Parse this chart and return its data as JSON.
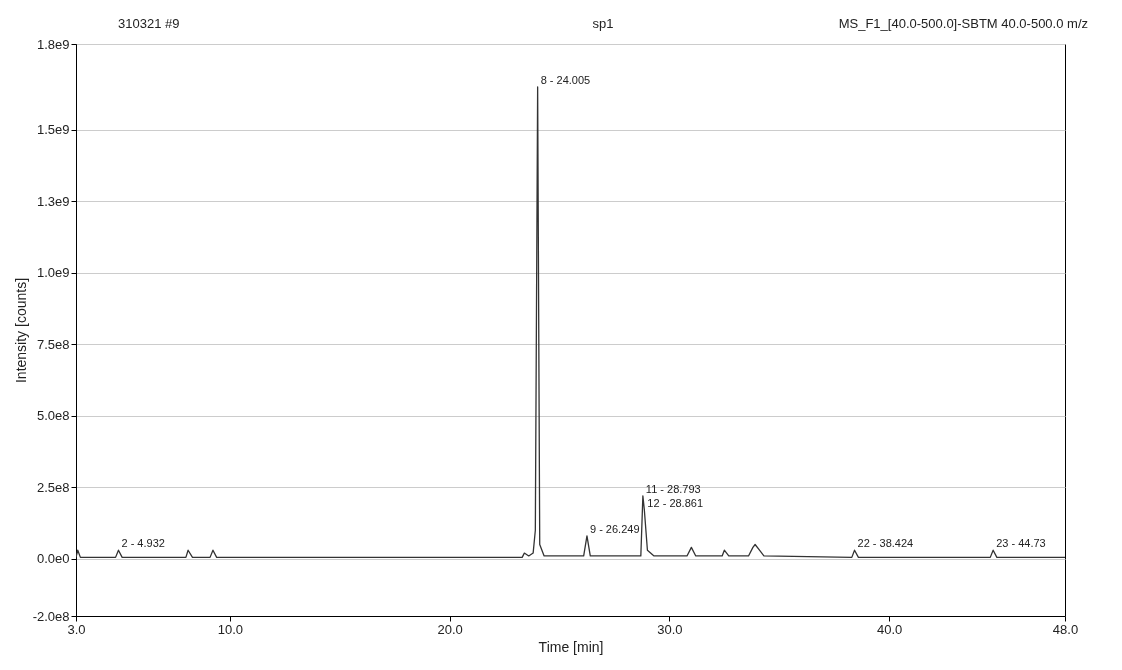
{
  "chart_data": {
    "type": "line",
    "title": "sp1",
    "subtitle": "MS_F1_[40.0-500.0]-SBTM 40.0-500.0 m/z",
    "xlabel": "Time [min]",
    "ylabel": "Intensity [counts]",
    "x": [
      3.0,
      3.08,
      3.2,
      4.8,
      4.932,
      5.1,
      8.0,
      8.1,
      8.3,
      9.1,
      9.231,
      9.4,
      23.3,
      23.4,
      23.6,
      23.8,
      23.9,
      24.005,
      24.1,
      24.3,
      26.1,
      26.249,
      26.4,
      28.7,
      28.793,
      28.861,
      29.0,
      29.3,
      30.8,
      31.0,
      31.2,
      32.4,
      32.5,
      32.7,
      33.6,
      33.8,
      33.9,
      34.1,
      34.3,
      38.3,
      38.424,
      38.6,
      44.6,
      44.73,
      44.9,
      48.0
    ],
    "series": [
      {
        "color": "#333333",
        "values": [
          5000000,
          30000000,
          5000000,
          5000000,
          30000000,
          5000000,
          5000000,
          30000000,
          5000000,
          5000000,
          30000000,
          5000000,
          5000000,
          20000000,
          10000000,
          20000000,
          100000000,
          1650000000,
          50000000,
          10000000,
          10000000,
          80000000,
          10000000,
          10000000,
          220000000,
          170000000,
          30000000,
          10000000,
          10000000,
          40000000,
          10000000,
          10000000,
          30000000,
          10000000,
          10000000,
          40000000,
          50000000,
          30000000,
          10000000,
          5000000,
          30000000,
          5000000,
          5000000,
          30000000,
          5000000,
          5000000
        ]
      }
    ],
    "xlim": [
      3.0,
      48.0
    ],
    "xticks": [
      {
        "value": 3,
        "label": "3.0"
      },
      {
        "value": 10,
        "label": "10.0"
      },
      {
        "value": 20,
        "label": "20.0"
      },
      {
        "value": 30,
        "label": "30.0"
      },
      {
        "value": 40,
        "label": "40.0"
      },
      {
        "value": 48,
        "label": "48.0"
      }
    ],
    "ylim": [
      -200000000,
      1800000000
    ],
    "yticks": [
      {
        "value": -200000000,
        "label": "-2.0e8"
      },
      {
        "value": 0,
        "label": "0.0e0"
      },
      {
        "value": 250000000,
        "label": "2.5e8"
      },
      {
        "value": 500000000,
        "label": "5.0e8"
      },
      {
        "value": 750000000,
        "label": "7.5e8"
      },
      {
        "value": 1000000000,
        "label": "1.0e9"
      },
      {
        "value": 1250000000,
        "label": "1.3e9"
      },
      {
        "value": 1500000000,
        "label": "1.5e9"
      },
      {
        "value": 1800000000,
        "label": "1.8e9"
      }
    ],
    "grid": "y",
    "line_style": "solid",
    "annotations": [
      "310321 #9",
      {
        "text": "2 - 4.932",
        "x": 4.932,
        "y": 30000000
      },
      {
        "text": "8 - 24.005",
        "x": 24.005,
        "y": 1650000000
      },
      {
        "text": "9 - 26.249",
        "x": 26.249,
        "y": 80000000
      },
      {
        "text": "11 - 28.793",
        "x": 28.793,
        "y": 220000000
      },
      {
        "text": "12 - 28.861",
        "x": 28.861,
        "y": 170000000
      },
      {
        "text": "22 - 38.424",
        "x": 38.424,
        "y": 30000000
      },
      {
        "text": "23 - 44.73",
        "x": 44.73,
        "y": 30000000
      }
    ]
  }
}
